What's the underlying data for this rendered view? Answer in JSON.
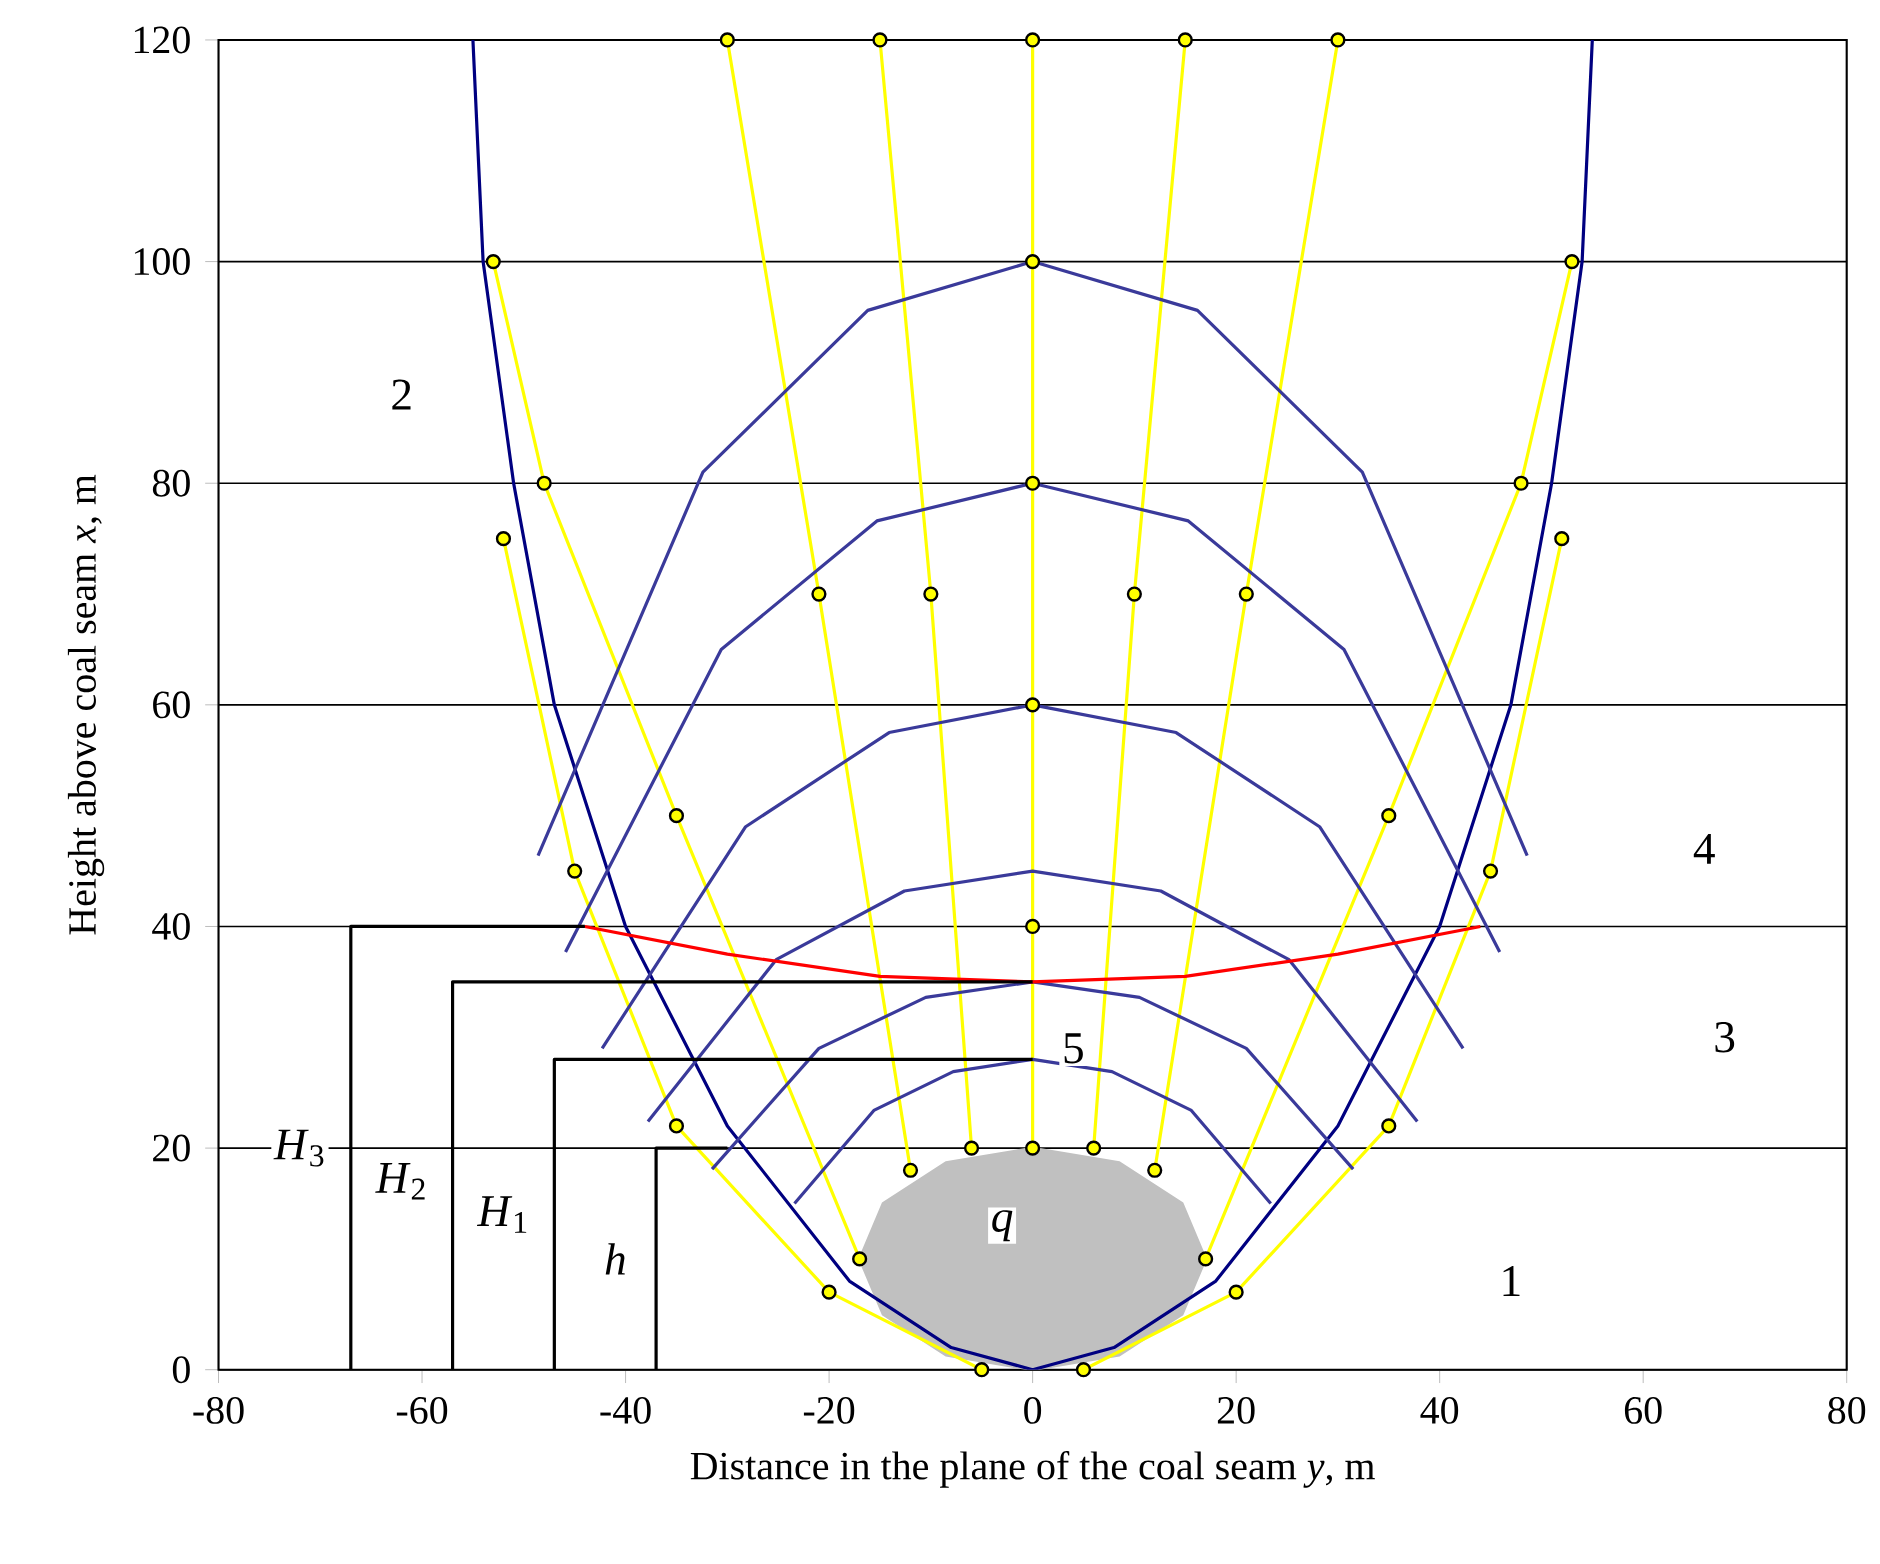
{
  "chart_data": {
    "type": "line",
    "xlabel": "Distance in the plane of the coal seam *y*, m",
    "ylabel": "Height above coal seam *x*, m",
    "xlim": [
      -80,
      80
    ],
    "ylim": [
      0,
      120
    ],
    "xticks": [
      -80,
      -60,
      -40,
      -20,
      0,
      20,
      40,
      60,
      80
    ],
    "yticks": [
      0,
      20,
      40,
      60,
      80,
      100,
      120
    ],
    "grid": "y",
    "series": [
      {
        "type": "area",
        "color": "#c0c0c0",
        "x": [
          17,
          14.7,
          8.5,
          0,
          -8.5,
          -14.7,
          -17,
          -14.7,
          -8.5,
          0,
          8.5,
          14.7
        ],
        "values": [
          10,
          15,
          18.7,
          20,
          18.7,
          15,
          10,
          5,
          1.3,
          0,
          1.3,
          5
        ]
      },
      {
        "type": "line",
        "color": "#000080",
        "x": [
          -55,
          -54,
          -51,
          -47,
          -40,
          -30,
          -18,
          -8,
          0,
          8,
          18,
          30,
          40,
          47,
          51,
          54,
          55
        ],
        "values": [
          120,
          100,
          80,
          60,
          40,
          22,
          8,
          2,
          0,
          2,
          8,
          22,
          40,
          60,
          80,
          100,
          120
        ]
      },
      {
        "type": "line",
        "color": "#3a3a9a",
        "x": [
          -23.4,
          -15.6,
          -7.8,
          0,
          7.8,
          15.6,
          23.4
        ],
        "values": [
          15.0,
          23.4,
          26.9,
          28,
          26.9,
          23.4,
          15.0
        ]
      },
      {
        "type": "line",
        "color": "#3a3a9a",
        "x": [
          -31.5,
          -21,
          -10.5,
          0,
          10.5,
          21,
          31.5
        ],
        "values": [
          18.1,
          29.0,
          33.6,
          35,
          33.6,
          29.0,
          18.1
        ]
      },
      {
        "type": "line",
        "color": "#3a3a9a",
        "x": [
          -37.8,
          -25.2,
          -12.6,
          0,
          12.6,
          25.2,
          37.8
        ],
        "values": [
          22.4,
          37.0,
          43.2,
          45,
          43.2,
          37.0,
          22.4
        ]
      },
      {
        "type": "line",
        "color": "#3a3a9a",
        "x": [
          -42.3,
          -28.2,
          -14.1,
          0,
          14.1,
          28.2,
          42.3
        ],
        "values": [
          29.0,
          49.0,
          57.5,
          60,
          57.5,
          49.0,
          29.0
        ]
      },
      {
        "type": "line",
        "color": "#3a3a9a",
        "x": [
          -45.9,
          -30.6,
          -15.3,
          0,
          15.3,
          30.6,
          45.9
        ],
        "values": [
          37.7,
          65.0,
          76.6,
          80,
          76.6,
          65.0,
          37.7
        ]
      },
      {
        "type": "line",
        "color": "#3a3a9a",
        "x": [
          -48.6,
          -32.4,
          -16.2,
          0,
          16.2,
          32.4,
          48.6
        ],
        "values": [
          46.4,
          81.0,
          95.6,
          100,
          95.6,
          81.0,
          46.4
        ]
      },
      {
        "type": "line",
        "color": "#ffff00",
        "marker": "circle",
        "x": [
          0,
          0,
          0,
          0,
          0,
          0
        ],
        "values": [
          20,
          40,
          60,
          80,
          100,
          120
        ]
      },
      {
        "type": "line",
        "color": "#ffff00",
        "marker": "circle",
        "x": [
          -6,
          -10,
          -15
        ],
        "values": [
          20,
          70,
          120
        ]
      },
      {
        "type": "line",
        "color": "#ffff00",
        "marker": "circle",
        "x": [
          6,
          10,
          15
        ],
        "values": [
          20,
          70,
          120
        ]
      },
      {
        "type": "line",
        "color": "#ffff00",
        "marker": "circle",
        "x": [
          -12,
          -21,
          -30
        ],
        "values": [
          18,
          70,
          120
        ]
      },
      {
        "type": "line",
        "color": "#ffff00",
        "marker": "circle",
        "x": [
          12,
          21,
          30
        ],
        "values": [
          18,
          70,
          120
        ]
      },
      {
        "type": "line",
        "color": "#ffff00",
        "marker": "circle",
        "x": [
          -17,
          -35,
          -48,
          -53
        ],
        "values": [
          10,
          50,
          80,
          100
        ]
      },
      {
        "type": "line",
        "color": "#ffff00",
        "marker": "circle",
        "x": [
          17,
          35,
          48,
          53
        ],
        "values": [
          10,
          50,
          80,
          100
        ]
      },
      {
        "type": "line",
        "color": "#ffff00",
        "marker": "circle",
        "x": [
          -52,
          -45,
          -35,
          -20,
          -5
        ],
        "values": [
          75,
          45,
          22,
          7,
          0
        ]
      },
      {
        "type": "line",
        "color": "#ffff00",
        "marker": "circle",
        "x": [
          5,
          20,
          35,
          45,
          52
        ],
        "values": [
          0,
          7,
          22,
          45,
          75
        ]
      },
      {
        "type": "line",
        "color": "#ff0000",
        "x": [
          -44,
          -30,
          -15,
          0,
          15,
          30,
          44
        ],
        "values": [
          40,
          37.5,
          35.5,
          35,
          35.5,
          37.5,
          40
        ]
      },
      {
        "type": "line",
        "color": "#000000",
        "x": [
          -67,
          -67,
          -44
        ],
        "values": [
          0,
          40,
          40
        ]
      },
      {
        "type": "line",
        "color": "#000000",
        "x": [
          -57,
          -57,
          0
        ],
        "values": [
          0,
          35,
          35
        ]
      },
      {
        "type": "line",
        "color": "#000000",
        "x": [
          -47,
          -47,
          0
        ],
        "values": [
          0,
          28,
          28
        ]
      },
      {
        "type": "line",
        "color": "#000000",
        "x": [
          -37,
          -37,
          -30
        ],
        "values": [
          0,
          20,
          20
        ]
      }
    ],
    "annotations": [
      "*H*$_{3}$",
      "*H*$_{2}$",
      "*H*$_{1}$",
      "*h*",
      "*q*",
      "1",
      "2",
      "3",
      "4",
      "5"
    ]
  }
}
